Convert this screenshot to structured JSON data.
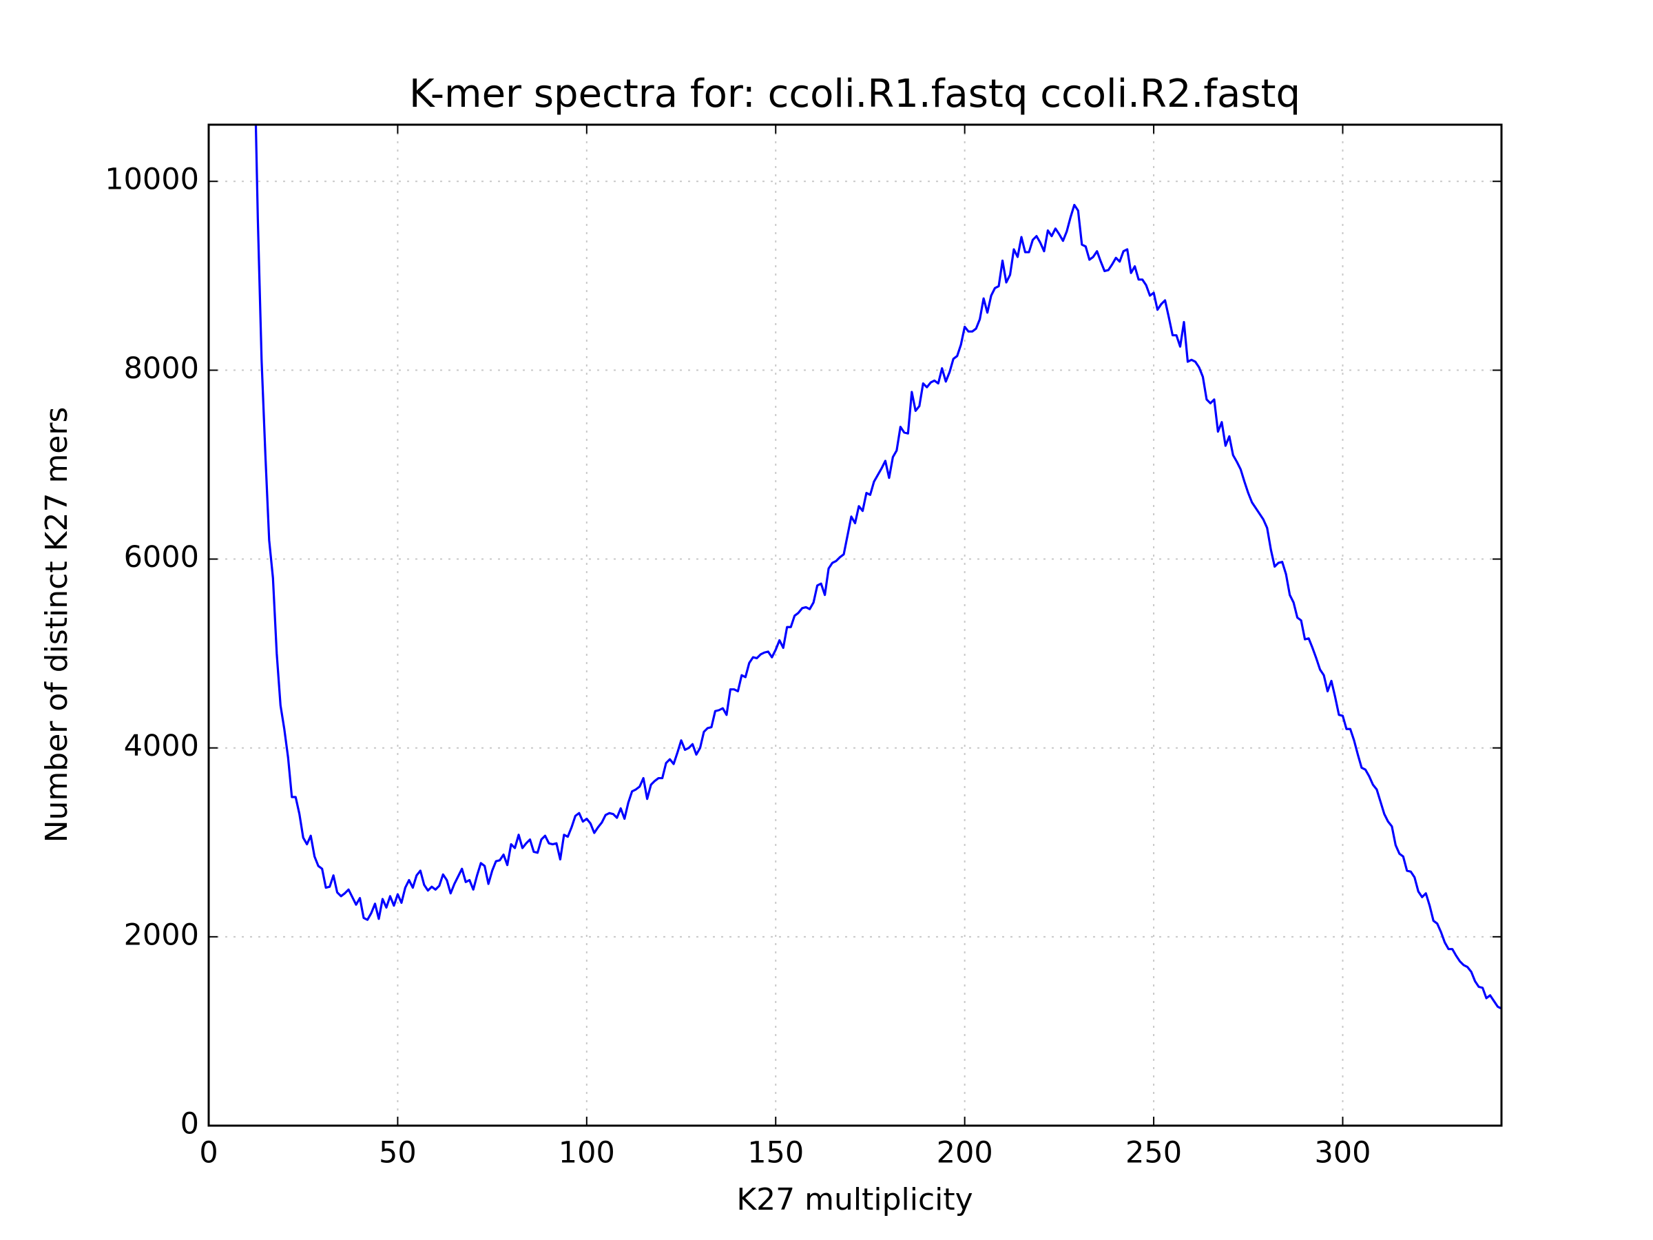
{
  "chart_data": {
    "type": "line",
    "title": "K-mer spectra for: ccoli.R1.fastq ccoli.R2.fastq",
    "x_label": "K27 multiplicity",
    "y_label": "Number of distinct K27 mers",
    "xlim": [
      0,
      342
    ],
    "ylim": [
      0,
      10600
    ],
    "xticks": [
      0,
      50,
      100,
      150,
      200,
      250,
      300
    ],
    "yticks": [
      0,
      2000,
      4000,
      6000,
      8000,
      10000
    ],
    "grid": true,
    "series": [
      {
        "color": "#0000ff",
        "x": [
          12,
          13,
          14,
          15,
          16,
          17,
          18,
          19,
          20,
          21,
          22,
          23,
          24,
          25,
          26,
          27,
          28,
          29,
          30,
          31,
          32,
          33,
          34,
          35,
          36,
          37,
          38,
          39,
          40,
          41,
          42,
          43,
          44,
          45,
          46,
          47,
          48,
          49,
          50,
          51,
          52,
          53,
          54,
          55,
          56,
          57,
          58,
          59,
          60,
          61,
          62,
          63,
          64,
          65,
          66,
          67,
          68,
          69,
          70,
          71,
          72,
          73,
          74,
          75,
          76,
          77,
          78,
          79,
          80,
          81,
          82,
          83,
          84,
          85,
          86,
          87,
          88,
          89,
          90,
          91,
          92,
          93,
          94,
          95,
          96,
          97,
          98,
          99,
          100,
          101,
          102,
          103,
          104,
          105,
          106,
          107,
          108,
          109,
          110,
          111,
          112,
          113,
          114,
          115,
          116,
          117,
          118,
          119,
          120,
          121,
          122,
          123,
          124,
          125,
          126,
          127,
          128,
          129,
          130,
          131,
          132,
          133,
          134,
          135,
          136,
          137,
          138,
          139,
          140,
          141,
          142,
          143,
          144,
          145,
          146,
          147,
          148,
          149,
          150,
          151,
          152,
          153,
          154,
          155,
          156,
          157,
          158,
          159,
          160,
          161,
          162,
          163,
          164,
          165,
          166,
          167,
          168,
          169,
          170,
          171,
          172,
          173,
          174,
          175,
          176,
          177,
          178,
          179,
          180,
          181,
          182,
          183,
          184,
          185,
          186,
          187,
          188,
          189,
          190,
          191,
          192,
          193,
          194,
          195,
          196,
          197,
          198,
          199,
          200,
          201,
          202,
          203,
          204,
          205,
          206,
          207,
          208,
          209,
          210,
          211,
          212,
          213,
          214,
          215,
          216,
          217,
          218,
          219,
          220,
          221,
          222,
          223,
          224,
          225,
          226,
          227,
          228,
          229,
          230,
          231,
          232,
          233,
          234,
          235,
          236,
          237,
          238,
          239,
          240,
          241,
          242,
          243,
          244,
          245,
          246,
          247,
          248,
          249,
          250,
          251,
          252,
          253,
          254,
          255,
          256,
          257,
          258,
          259,
          260,
          261,
          262,
          263,
          264,
          265,
          266,
          267,
          268,
          269,
          270,
          271,
          272,
          273,
          274,
          275,
          276,
          277,
          278,
          279,
          280,
          281,
          282,
          283,
          284,
          285,
          286,
          287,
          288,
          289,
          290,
          291,
          292,
          293,
          294,
          295,
          296,
          297,
          298,
          299,
          300,
          301,
          302,
          303,
          304,
          305,
          306,
          307,
          308,
          309,
          310,
          311,
          312,
          313,
          314,
          315,
          316,
          317,
          318,
          319,
          320,
          321,
          322,
          323,
          324,
          325,
          326,
          327,
          328,
          329,
          330,
          331,
          332,
          333,
          334,
          335,
          336,
          337,
          338,
          339,
          340,
          341,
          342
        ],
        "values": [
          11500,
          9600,
          8100,
          7100,
          6200,
          5800,
          5000,
          4450,
          4200,
          3900,
          3480,
          3480,
          3300,
          3050,
          2980,
          3070,
          2850,
          2750,
          2720,
          2520,
          2530,
          2650,
          2470,
          2430,
          2460,
          2500,
          2420,
          2340,
          2410,
          2200,
          2180,
          2250,
          2350,
          2190,
          2400,
          2310,
          2430,
          2330,
          2450,
          2360,
          2520,
          2600,
          2520,
          2650,
          2700,
          2550,
          2490,
          2530,
          2500,
          2540,
          2660,
          2600,
          2460,
          2560,
          2640,
          2720,
          2580,
          2600,
          2500,
          2650,
          2780,
          2750,
          2560,
          2700,
          2800,
          2810,
          2870,
          2760,
          2980,
          2940,
          3080,
          2940,
          2990,
          3030,
          2900,
          2890,
          3030,
          3070,
          2990,
          2980,
          2990,
          2820,
          3080,
          3060,
          3160,
          3280,
          3310,
          3220,
          3250,
          3200,
          3100,
          3160,
          3210,
          3290,
          3310,
          3300,
          3260,
          3360,
          3250,
          3420,
          3540,
          3560,
          3590,
          3680,
          3460,
          3610,
          3650,
          3680,
          3680,
          3840,
          3880,
          3830,
          3950,
          4080,
          3980,
          4000,
          4040,
          3930,
          4000,
          4170,
          4210,
          4220,
          4390,
          4400,
          4420,
          4350,
          4620,
          4620,
          4600,
          4770,
          4750,
          4900,
          4960,
          4950,
          4990,
          5010,
          5020,
          4960,
          5040,
          5140,
          5060,
          5280,
          5280,
          5400,
          5430,
          5480,
          5490,
          5470,
          5540,
          5720,
          5740,
          5620,
          5900,
          5960,
          5980,
          6020,
          6050,
          6250,
          6450,
          6380,
          6560,
          6510,
          6700,
          6680,
          6820,
          6890,
          6960,
          7040,
          6860,
          7080,
          7150,
          7400,
          7340,
          7330,
          7770,
          7570,
          7620,
          7860,
          7820,
          7870,
          7890,
          7860,
          8020,
          7880,
          7980,
          8120,
          8150,
          8270,
          8460,
          8410,
          8410,
          8440,
          8540,
          8760,
          8610,
          8790,
          8870,
          8890,
          9160,
          8930,
          9010,
          9280,
          9200,
          9410,
          9250,
          9250,
          9380,
          9420,
          9350,
          9260,
          9480,
          9420,
          9500,
          9440,
          9370,
          9470,
          9620,
          9750,
          9690,
          9330,
          9310,
          9170,
          9200,
          9260,
          9150,
          9050,
          9060,
          9120,
          9190,
          9150,
          9260,
          9280,
          9030,
          9100,
          8960,
          8960,
          8900,
          8790,
          8820,
          8640,
          8700,
          8740,
          8560,
          8370,
          8370,
          8250,
          8510,
          8090,
          8110,
          8090,
          8030,
          7930,
          7690,
          7650,
          7690,
          7350,
          7450,
          7200,
          7300,
          7100,
          7030,
          6950,
          6820,
          6700,
          6600,
          6540,
          6480,
          6420,
          6330,
          6100,
          5920,
          5960,
          5970,
          5840,
          5620,
          5540,
          5380,
          5350,
          5150,
          5160,
          5060,
          4950,
          4830,
          4770,
          4600,
          4710,
          4540,
          4350,
          4340,
          4200,
          4200,
          4080,
          3930,
          3790,
          3770,
          3700,
          3610,
          3560,
          3430,
          3300,
          3220,
          3170,
          2970,
          2880,
          2850,
          2700,
          2690,
          2630,
          2480,
          2420,
          2460,
          2330,
          2170,
          2140,
          2050,
          1940,
          1870,
          1870,
          1800,
          1740,
          1700,
          1680,
          1630,
          1530,
          1470,
          1460,
          1350,
          1380,
          1320,
          1260,
          1240
        ]
      }
    ]
  }
}
